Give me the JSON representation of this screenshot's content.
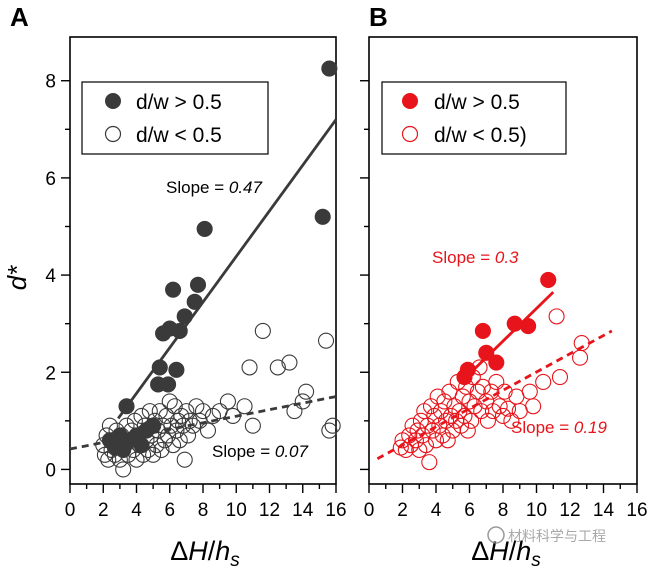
{
  "panels": {
    "a": {
      "letter": "A"
    },
    "b": {
      "letter": "B"
    }
  },
  "colors": {
    "panel_a": "#3a3a3a",
    "panel_b": "#e8141b",
    "axis": "#000000"
  },
  "watermark": "材料科学与工程",
  "chart_data": [
    {
      "type": "scatter",
      "panel": "A",
      "ylabel": "d*",
      "xlabel": "ΔH/h_s",
      "xlim": [
        0,
        16
      ],
      "ylim": [
        -0.3,
        8.9
      ],
      "xticks": [
        "0",
        "2",
        "4",
        "6",
        "8",
        "10",
        "12",
        "14",
        "16"
      ],
      "yticks": [
        "0",
        "2",
        "4",
        "6",
        "8"
      ],
      "legend_position": "top-left",
      "legend": [
        {
          "label": "d/w > 0.5",
          "filled": true
        },
        {
          "label": "d/w < 0.5",
          "filled": false
        }
      ],
      "annotations": [
        {
          "prefix": "Slope = ",
          "value": "0.47"
        },
        {
          "prefix": "Slope = ",
          "value": "0.07"
        }
      ],
      "fits": [
        {
          "series": "d/w > 0.5",
          "slope": 0.47,
          "x": [
            2.9,
            16
          ],
          "y": [
            1.05,
            7.2
          ],
          "style": "solid"
        },
        {
          "series": "d/w < 0.5",
          "slope": 0.07,
          "x": [
            0,
            16
          ],
          "y": [
            0.42,
            1.5
          ],
          "style": "dashed"
        }
      ],
      "series": [
        {
          "name": "d/w > 0.5",
          "filled": true,
          "points": [
            [
              2.4,
              0.6
            ],
            [
              2.7,
              0.45
            ],
            [
              3.0,
              0.7
            ],
            [
              3.2,
              0.4
            ],
            [
              3.4,
              1.3
            ],
            [
              3.6,
              0.6
            ],
            [
              4.0,
              0.7
            ],
            [
              4.3,
              0.5
            ],
            [
              4.6,
              0.8
            ],
            [
              5.0,
              0.9
            ],
            [
              5.3,
              1.75
            ],
            [
              5.4,
              2.1
            ],
            [
              5.6,
              2.8
            ],
            [
              5.9,
              1.75
            ],
            [
              6.0,
              2.9
            ],
            [
              6.2,
              3.7
            ],
            [
              6.4,
              2.05
            ],
            [
              6.6,
              2.85
            ],
            [
              6.9,
              3.15
            ],
            [
              7.5,
              3.45
            ],
            [
              7.7,
              3.8
            ],
            [
              8.1,
              4.95
            ],
            [
              15.2,
              5.2
            ],
            [
              15.6,
              8.25
            ]
          ]
        },
        {
          "name": "d/w < 0.5",
          "filled": false,
          "points": [
            [
              2.0,
              0.5
            ],
            [
              2.1,
              0.3
            ],
            [
              2.2,
              0.7
            ],
            [
              2.3,
              0.2
            ],
            [
              2.4,
              0.9
            ],
            [
              2.5,
              0.4
            ],
            [
              2.6,
              0.6
            ],
            [
              2.7,
              0.3
            ],
            [
              2.8,
              0.8
            ],
            [
              2.9,
              0.5
            ],
            [
              3.0,
              0.2
            ],
            [
              3.1,
              0.7
            ],
            [
              3.2,
              0.0
            ],
            [
              3.3,
              0.5
            ],
            [
              3.4,
              0.9
            ],
            [
              3.5,
              0.3
            ],
            [
              3.6,
              0.6
            ],
            [
              3.7,
              0.8
            ],
            [
              3.8,
              0.4
            ],
            [
              3.9,
              1.0
            ],
            [
              4.0,
              0.2
            ],
            [
              4.1,
              0.7
            ],
            [
              4.2,
              0.5
            ],
            [
              4.3,
              1.1
            ],
            [
              4.4,
              0.3
            ],
            [
              4.5,
              0.9
            ],
            [
              4.6,
              0.6
            ],
            [
              4.7,
              0.4
            ],
            [
              4.8,
              1.2
            ],
            [
              4.9,
              0.7
            ],
            [
              5.0,
              0.3
            ],
            [
              5.1,
              1.0
            ],
            [
              5.2,
              0.5
            ],
            [
              5.3,
              0.8
            ],
            [
              5.4,
              1.2
            ],
            [
              5.5,
              0.4
            ],
            [
              5.6,
              0.9
            ],
            [
              5.7,
              0.6
            ],
            [
              5.8,
              1.1
            ],
            [
              5.9,
              0.7
            ],
            [
              6.0,
              1.4
            ],
            [
              6.1,
              0.9
            ],
            [
              6.2,
              0.5
            ],
            [
              6.3,
              1.3
            ],
            [
              6.4,
              0.8
            ],
            [
              6.5,
              1.0
            ],
            [
              6.6,
              0.6
            ],
            [
              6.7,
              1.1
            ],
            [
              6.8,
              0.9
            ],
            [
              6.9,
              0.2
            ],
            [
              7.0,
              1.2
            ],
            [
              7.1,
              0.7
            ],
            [
              7.2,
              1.0
            ],
            [
              7.4,
              0.9
            ],
            [
              7.6,
              1.3
            ],
            [
              7.8,
              1.0
            ],
            [
              8.0,
              1.2
            ],
            [
              8.3,
              0.8
            ],
            [
              8.6,
              1.1
            ],
            [
              9.0,
              1.2
            ],
            [
              9.5,
              1.4
            ],
            [
              9.8,
              1.1
            ],
            [
              10.5,
              1.3
            ],
            [
              10.8,
              2.1
            ],
            [
              11.0,
              0.9
            ],
            [
              11.6,
              2.85
            ],
            [
              12.5,
              2.1
            ],
            [
              13.2,
              2.2
            ],
            [
              13.5,
              1.2
            ],
            [
              14.2,
              1.6
            ],
            [
              15.4,
              2.65
            ],
            [
              15.6,
              0.8
            ],
            [
              15.8,
              0.9
            ],
            [
              14.0,
              1.4
            ]
          ]
        }
      ]
    },
    {
      "type": "scatter",
      "panel": "B",
      "ylabel": "",
      "xlabel": "ΔH/h_s",
      "xlim": [
        0,
        16
      ],
      "ylim": [
        -0.3,
        8.9
      ],
      "xticks": [
        "0",
        "2",
        "4",
        "6",
        "8",
        "10",
        "12",
        "14",
        "16"
      ],
      "yticks": [],
      "legend_position": "top-left",
      "legend": [
        {
          "label": "d/w > 0.5",
          "filled": true
        },
        {
          "label": "d/w < 0.5)",
          "filled": false
        }
      ],
      "annotations": [
        {
          "prefix": "Slope = ",
          "value": "0.3"
        },
        {
          "prefix": "Slope = ",
          "value": "0.19"
        }
      ],
      "fits": [
        {
          "series": "d/w > 0.5",
          "slope": 0.3,
          "x": [
            5.5,
            11.0
          ],
          "y": [
            1.8,
            3.65
          ],
          "style": "solid"
        },
        {
          "series": "d/w < 0.5",
          "slope": 0.19,
          "x": [
            0.5,
            14.5
          ],
          "y": [
            0.22,
            2.85
          ],
          "style": "dashed"
        }
      ],
      "series": [
        {
          "name": "d/w > 0.5",
          "filled": true,
          "points": [
            [
              5.7,
              1.9
            ],
            [
              5.9,
              2.05
            ],
            [
              6.8,
              2.85
            ],
            [
              7.0,
              2.4
            ],
            [
              7.6,
              2.2
            ],
            [
              8.7,
              3.0
            ],
            [
              9.5,
              2.95
            ],
            [
              10.7,
              3.9
            ]
          ]
        },
        {
          "name": "d/w < 0.5",
          "filled": false,
          "points": [
            [
              1.9,
              0.45
            ],
            [
              2.0,
              0.6
            ],
            [
              2.2,
              0.4
            ],
            [
              2.4,
              0.7
            ],
            [
              2.5,
              0.5
            ],
            [
              2.6,
              0.9
            ],
            [
              2.8,
              0.6
            ],
            [
              2.9,
              0.8
            ],
            [
              3.0,
              0.4
            ],
            [
              3.1,
              1.0
            ],
            [
              3.2,
              0.7
            ],
            [
              3.3,
              1.2
            ],
            [
              3.4,
              0.5
            ],
            [
              3.5,
              0.9
            ],
            [
              3.6,
              0.15
            ],
            [
              3.7,
              1.3
            ],
            [
              3.8,
              0.8
            ],
            [
              3.9,
              1.1
            ],
            [
              4.0,
              0.6
            ],
            [
              4.1,
              1.5
            ],
            [
              4.2,
              0.9
            ],
            [
              4.3,
              1.2
            ],
            [
              4.4,
              0.7
            ],
            [
              4.5,
              1.4
            ],
            [
              4.6,
              1.0
            ],
            [
              4.7,
              0.6
            ],
            [
              4.8,
              1.6
            ],
            [
              4.9,
              1.1
            ],
            [
              5.0,
              0.8
            ],
            [
              5.1,
              1.3
            ],
            [
              5.2,
              1.0
            ],
            [
              5.3,
              1.8
            ],
            [
              5.4,
              1.2
            ],
            [
              5.5,
              0.9
            ],
            [
              5.6,
              1.5
            ],
            [
              5.7,
              1.1
            ],
            [
              5.8,
              1.7
            ],
            [
              5.9,
              0.8
            ],
            [
              6.0,
              1.4
            ],
            [
              6.1,
              1.0
            ],
            [
              6.2,
              1.9
            ],
            [
              6.3,
              1.3
            ],
            [
              6.5,
              1.6
            ],
            [
              6.6,
              2.1
            ],
            [
              6.7,
              1.2
            ],
            [
              6.8,
              1.7
            ],
            [
              7.0,
              1.4
            ],
            [
              7.1,
              1.0
            ],
            [
              7.3,
              1.6
            ],
            [
              7.4,
              1.2
            ],
            [
              7.6,
              1.8
            ],
            [
              7.8,
              1.3
            ],
            [
              8.0,
              1.1
            ],
            [
              8.1,
              1.6
            ],
            [
              8.3,
              1.25
            ],
            [
              8.5,
              1.0
            ],
            [
              8.8,
              1.5
            ],
            [
              9.0,
              1.2
            ],
            [
              9.6,
              1.6
            ],
            [
              9.8,
              1.3
            ],
            [
              10.4,
              1.8
            ],
            [
              11.2,
              3.15
            ],
            [
              11.4,
              1.9
            ],
            [
              12.6,
              2.3
            ],
            [
              12.7,
              2.6
            ]
          ]
        }
      ]
    }
  ]
}
